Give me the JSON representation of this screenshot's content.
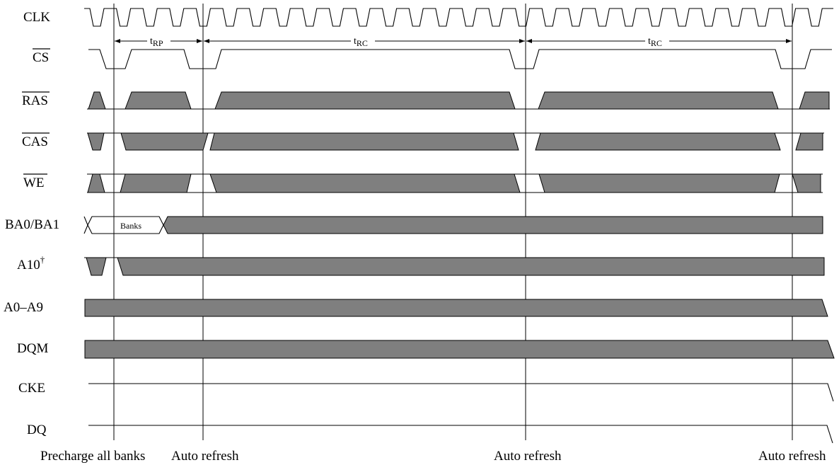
{
  "signals": [
    {
      "id": "clk",
      "label": "CLK",
      "overbar": false
    },
    {
      "id": "cs",
      "label": "CS",
      "overbar": true
    },
    {
      "id": "ras",
      "label": "RAS",
      "overbar": true
    },
    {
      "id": "cas",
      "label": "CAS",
      "overbar": true
    },
    {
      "id": "we",
      "label": "WE",
      "overbar": true
    },
    {
      "id": "ba",
      "label": "BA0/BA1",
      "overbar": false
    },
    {
      "id": "a10",
      "label": "A10",
      "superscript": "†",
      "overbar": false
    },
    {
      "id": "a09",
      "label": "A0–A9",
      "overbar": false
    },
    {
      "id": "dqm",
      "label": "DQM",
      "overbar": false
    },
    {
      "id": "cke",
      "label": "CKE",
      "overbar": false
    },
    {
      "id": "dq",
      "label": "DQ",
      "overbar": false
    }
  ],
  "timing": [
    {
      "id": "trp",
      "base": "t",
      "sub": "RP"
    },
    {
      "id": "trc1",
      "base": "t",
      "sub": "RC"
    },
    {
      "id": "trc2",
      "base": "t",
      "sub": "RC"
    }
  ],
  "banks_label": "Banks",
  "events": [
    {
      "id": "precharge",
      "label": "Precharge all banks"
    },
    {
      "id": "refresh1",
      "label": "Auto refresh"
    },
    {
      "id": "refresh2",
      "label": "Auto refresh"
    },
    {
      "id": "refresh3",
      "label": "Auto refresh"
    }
  ],
  "colors": {
    "bus_fill": "#7f7f7f",
    "line": "#000000"
  }
}
